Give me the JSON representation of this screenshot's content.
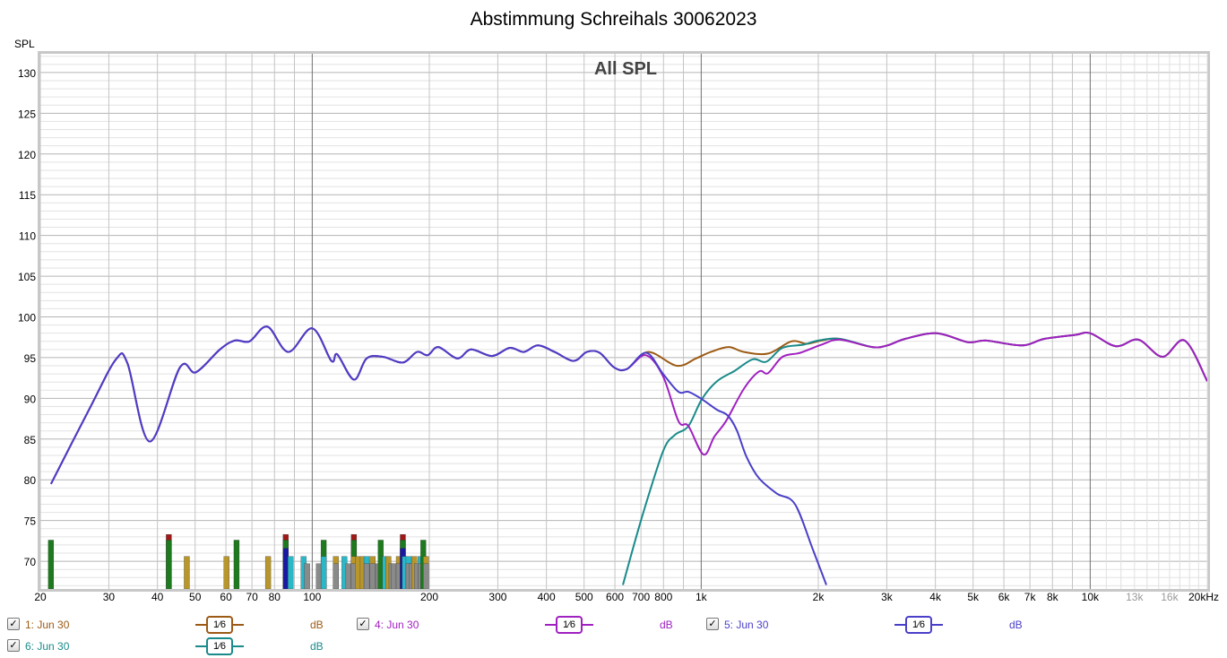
{
  "chart_data": {
    "type": "line",
    "title": "Abstimmung Schreihals 30062023",
    "subtitle": "All SPL",
    "ylabel": "SPL",
    "xlabel": "Hz",
    "xscale": "log",
    "xlim": [
      20,
      20000
    ],
    "ylim": [
      66.6,
      132.3
    ],
    "grid": true,
    "yticks": [
      70,
      75,
      80,
      85,
      90,
      95,
      100,
      105,
      110,
      115,
      120,
      125,
      130
    ],
    "xticks": [
      {
        "f": 20,
        "label": "20"
      },
      {
        "f": 30,
        "label": "30"
      },
      {
        "f": 40,
        "label": "40"
      },
      {
        "f": 50,
        "label": "50"
      },
      {
        "f": 60,
        "label": "60"
      },
      {
        "f": 70,
        "label": "70"
      },
      {
        "f": 80,
        "label": "80"
      },
      {
        "f": 100,
        "label": "100"
      },
      {
        "f": 200,
        "label": "200"
      },
      {
        "f": 300,
        "label": "300"
      },
      {
        "f": 400,
        "label": "400"
      },
      {
        "f": 500,
        "label": "500"
      },
      {
        "f": 600,
        "label": "600"
      },
      {
        "f": 700,
        "label": "700"
      },
      {
        "f": 800,
        "label": "800"
      },
      {
        "f": 1000,
        "label": "1k"
      },
      {
        "f": 2000,
        "label": "2k"
      },
      {
        "f": 3000,
        "label": "3k"
      },
      {
        "f": 4000,
        "label": "4k"
      },
      {
        "f": 5000,
        "label": "5k"
      },
      {
        "f": 6000,
        "label": "6k"
      },
      {
        "f": 7000,
        "label": "7k"
      },
      {
        "f": 8000,
        "label": "8k"
      },
      {
        "f": 10000,
        "label": "10k"
      },
      {
        "f": 13000,
        "label": "13k",
        "muted": true
      },
      {
        "f": 16000,
        "label": "16k",
        "muted": true
      },
      {
        "f": 20000,
        "label": "20kHz"
      }
    ],
    "shared_lf": [
      [
        21.3,
        79.5
      ],
      [
        26.8,
        88.8
      ],
      [
        31.3,
        94.8
      ],
      [
        33.5,
        94.3
      ],
      [
        38.2,
        84.7
      ],
      [
        45.7,
        93.8
      ],
      [
        50.2,
        93.2
      ],
      [
        57.9,
        96
      ],
      [
        63.2,
        97.1
      ],
      [
        69,
        97
      ],
      [
        76.7,
        98.8
      ],
      [
        86.8,
        95.7
      ],
      [
        100,
        98.6
      ],
      [
        112,
        94.6
      ],
      [
        116,
        95.4
      ],
      [
        128,
        92.3
      ],
      [
        138,
        94.9
      ],
      [
        152,
        95.1
      ],
      [
        171,
        94.4
      ],
      [
        186,
        95.7
      ],
      [
        198,
        95.3
      ],
      [
        211,
        96.3
      ],
      [
        236,
        94.9
      ],
      [
        256,
        96
      ],
      [
        290,
        95.2
      ],
      [
        322,
        96.2
      ],
      [
        350,
        95.7
      ],
      [
        380,
        96.5
      ],
      [
        420,
        95.7
      ],
      [
        470,
        94.6
      ],
      [
        508,
        95.7
      ],
      [
        548,
        95.6
      ],
      [
        597,
        93.8
      ],
      [
        644,
        93.6
      ]
    ],
    "shared_hf": [
      [
        2750,
        96.3
      ],
      [
        3010,
        96.5
      ],
      [
        3345,
        97.3
      ],
      [
        4030,
        98
      ],
      [
        4850,
        96.9
      ],
      [
        5400,
        97.1
      ],
      [
        6670,
        96.5
      ],
      [
        7620,
        97.3
      ],
      [
        9170,
        97.8
      ],
      [
        10000,
        98
      ],
      [
        11640,
        96.4
      ],
      [
        13300,
        97.2
      ],
      [
        15340,
        95.1
      ],
      [
        17500,
        97.1
      ],
      [
        20000,
        92.1
      ]
    ],
    "series": [
      {
        "name": "1: Jun 30",
        "color": "#9c5a14",
        "uses_lf": true,
        "uses_hf": true,
        "points": [
          [
            730,
            95.7
          ],
          [
            865,
            94
          ],
          [
            970,
            94.9
          ],
          [
            1058,
            95.7
          ],
          [
            1177,
            96.3
          ],
          [
            1288,
            95.7
          ],
          [
            1486,
            95.5
          ],
          [
            1706,
            97
          ],
          [
            1866,
            96.7
          ],
          [
            2040,
            97.1
          ],
          [
            2270,
            97.3
          ]
        ]
      },
      {
        "name": "6: Jun 30",
        "color": "#1a8a8a",
        "uses_lf": false,
        "uses_hf": true,
        "points": [
          [
            629,
            67.1
          ],
          [
            707,
            75.7
          ],
          [
            798,
            83.5
          ],
          [
            855,
            85.5
          ],
          [
            927,
            86.6
          ],
          [
            1004,
            89.9
          ],
          [
            1098,
            92.1
          ],
          [
            1221,
            93.4
          ],
          [
            1357,
            94.8
          ],
          [
            1470,
            94.5
          ],
          [
            1618,
            96.2
          ],
          [
            1836,
            96.6
          ],
          [
            2000,
            97.1
          ],
          [
            2270,
            97.3
          ]
        ]
      },
      {
        "name": "4: Jun 30",
        "color": "#a020c0",
        "uses_lf": true,
        "uses_hf": true,
        "points": [
          [
            720,
            95.3
          ],
          [
            798,
            92.7
          ],
          [
            874,
            87.2
          ],
          [
            927,
            86.6
          ],
          [
            1014,
            83.1
          ],
          [
            1081,
            85.3
          ],
          [
            1158,
            87.2
          ],
          [
            1288,
            91.2
          ],
          [
            1408,
            93.3
          ],
          [
            1486,
            93.1
          ],
          [
            1618,
            95.1
          ],
          [
            1798,
            95.6
          ],
          [
            2040,
            96.6
          ],
          [
            2270,
            97.2
          ]
        ]
      },
      {
        "name": "5: Jun 30",
        "color": "#4a3fc8",
        "uses_lf": true,
        "uses_hf": false,
        "points": [
          [
            722,
            95.6
          ],
          [
            798,
            93
          ],
          [
            874,
            90.8
          ],
          [
            927,
            90.8
          ],
          [
            1004,
            89.9
          ],
          [
            1098,
            88.6
          ],
          [
            1170,
            87.9
          ],
          [
            1234,
            86.1
          ],
          [
            1308,
            82.8
          ],
          [
            1408,
            80.2
          ],
          [
            1566,
            78.3
          ],
          [
            1742,
            77
          ],
          [
            1938,
            71.4
          ],
          [
            2098,
            67.1
          ]
        ]
      }
    ],
    "mode_marker_colors": {
      "g": "#1e7a1e",
      "r": "#a01818",
      "t": "#b8962a",
      "c": "#2ab8c8",
      "y": "#8a8a8a",
      "b": "#1a1aa0"
    },
    "mode_markers": [
      [
        21.3,
        "g",
        72.6
      ],
      [
        42.8,
        "r",
        73.3
      ],
      [
        42.8,
        "g",
        72.6
      ],
      [
        47.6,
        "t",
        70.6
      ],
      [
        60.2,
        "t",
        70.6
      ],
      [
        63.9,
        "g",
        72.6
      ],
      [
        77,
        "t",
        70.6
      ],
      [
        85.5,
        "r",
        73.3
      ],
      [
        85.5,
        "g",
        72.6
      ],
      [
        85.5,
        "b",
        71.6
      ],
      [
        88,
        "c",
        70.6
      ],
      [
        95,
        "c",
        70.6
      ],
      [
        97,
        "y",
        69.7
      ],
      [
        104,
        "y",
        69.7
      ],
      [
        107,
        "g",
        72.6
      ],
      [
        107,
        "c",
        70.6
      ],
      [
        115,
        "t",
        70.6
      ],
      [
        115,
        "y",
        69.7
      ],
      [
        121,
        "c",
        70.6
      ],
      [
        124,
        "y",
        69.7
      ],
      [
        128,
        "r",
        73.3
      ],
      [
        128,
        "g",
        72.6
      ],
      [
        128,
        "t",
        70.6
      ],
      [
        128,
        "y",
        69.7
      ],
      [
        131,
        "t",
        70.6
      ],
      [
        135,
        "t",
        70.6
      ],
      [
        138,
        "c",
        70.6
      ],
      [
        138,
        "y",
        69.7
      ],
      [
        143,
        "t",
        70.6
      ],
      [
        143,
        "y",
        69.7
      ],
      [
        148,
        "y",
        69.7
      ],
      [
        150,
        "g",
        72.6
      ],
      [
        154,
        "c",
        70.6
      ],
      [
        157,
        "t",
        70.6
      ],
      [
        160,
        "y",
        69.7
      ],
      [
        162,
        "y",
        69.7
      ],
      [
        167,
        "t",
        70.6
      ],
      [
        167,
        "y",
        69.7
      ],
      [
        171,
        "r",
        73.3
      ],
      [
        171,
        "g",
        72.6
      ],
      [
        171,
        "b",
        71.6
      ],
      [
        173,
        "c",
        70.6
      ],
      [
        177,
        "c",
        70.6
      ],
      [
        177,
        "y",
        69.7
      ],
      [
        180,
        "y",
        69.7
      ],
      [
        183,
        "t",
        70.6
      ],
      [
        186,
        "y",
        69.7
      ],
      [
        190,
        "c",
        70.6
      ],
      [
        190,
        "y",
        69.7
      ],
      [
        193,
        "g",
        72.6
      ],
      [
        196,
        "t",
        70.6
      ],
      [
        196,
        "y",
        69.7
      ]
    ]
  },
  "legend": [
    {
      "label": "1: Jun 30",
      "color": "#9c5a14",
      "smoothing": "1⁄6",
      "unit": "dB",
      "checked": "✓"
    },
    {
      "label": "4: Jun 30",
      "color": "#a020c0",
      "smoothing": "1⁄6",
      "unit": "dB",
      "checked": "✓"
    },
    {
      "label": "5: Jun 30",
      "color": "#4a3fc8",
      "smoothing": "1⁄6",
      "unit": "dB",
      "checked": "✓"
    },
    {
      "label": "6: Jun 30",
      "color": "#1a8a8a",
      "smoothing": "1⁄6",
      "unit": "dB",
      "checked": "✓"
    }
  ]
}
